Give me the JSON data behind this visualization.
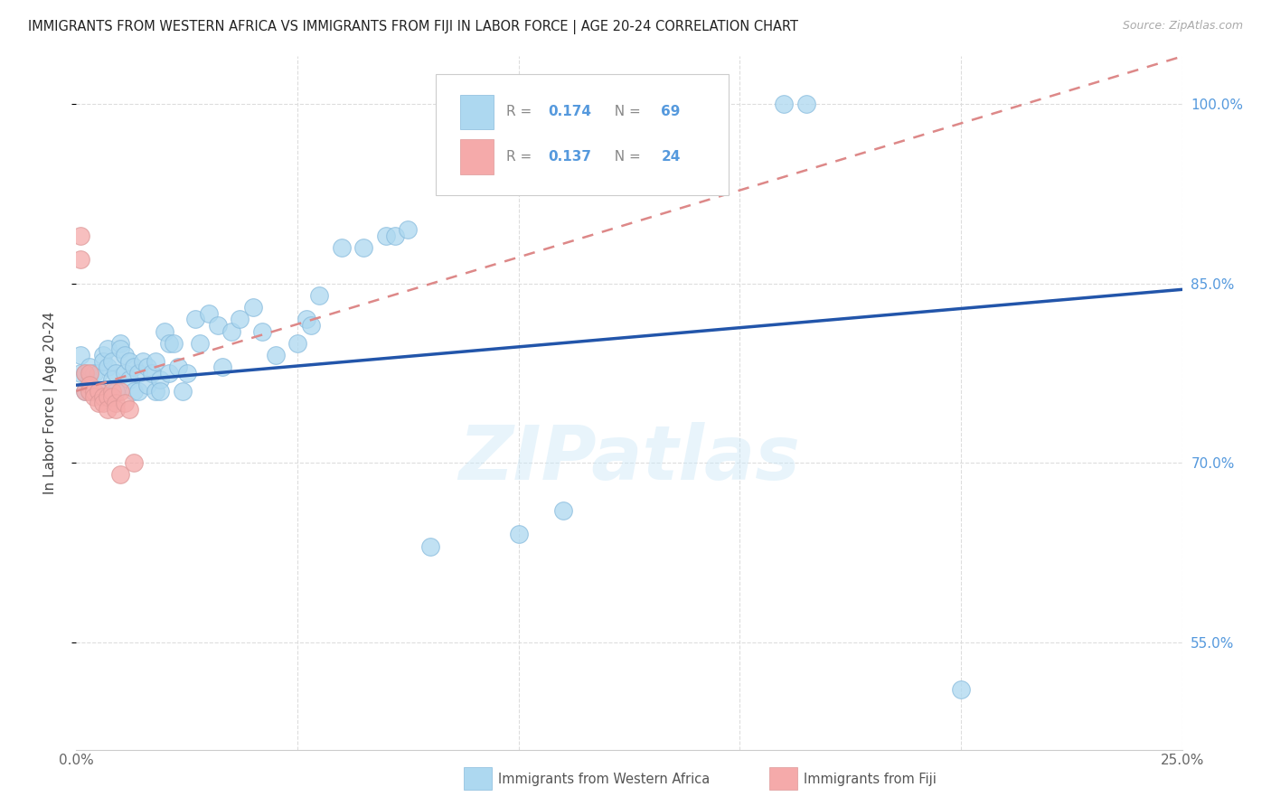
{
  "title": "IMMIGRANTS FROM WESTERN AFRICA VS IMMIGRANTS FROM FIJI IN LABOR FORCE | AGE 20-24 CORRELATION CHART",
  "source": "Source: ZipAtlas.com",
  "ylabel": "In Labor Force | Age 20-24",
  "xlim": [
    0.0,
    0.25
  ],
  "ylim": [
    0.46,
    1.04
  ],
  "xticks": [
    0.0,
    0.05,
    0.1,
    0.15,
    0.2,
    0.25
  ],
  "xticklabels": [
    "0.0%",
    "",
    "",
    "",
    "",
    "25.0%"
  ],
  "ytick_positions": [
    0.55,
    0.7,
    0.85,
    1.0
  ],
  "ytick_labels": [
    "55.0%",
    "70.0%",
    "85.0%",
    "100.0%"
  ],
  "watermark": "ZIPatlas",
  "blue_color": "#add8f0",
  "pink_color": "#f5aaaa",
  "blue_line_color": "#2255aa",
  "pink_line_color": "#dd8888",
  "grid_color": "#dddddd",
  "grid_linestyle": "--",
  "background_color": "#ffffff",
  "blue_line_x0": 0.0,
  "blue_line_y0": 0.765,
  "blue_line_x1": 0.25,
  "blue_line_y1": 0.845,
  "pink_line_x0": 0.0,
  "pink_line_y0": 0.76,
  "pink_line_x1": 0.25,
  "pink_line_y1": 1.04,
  "legend_r_blue": "0.174",
  "legend_n_blue": "69",
  "legend_r_pink": "0.137",
  "legend_n_pink": "24",
  "legend_text_color": "#888888",
  "legend_value_color": "#5599dd",
  "blue_x": [
    0.001,
    0.001,
    0.002,
    0.002,
    0.003,
    0.003,
    0.003,
    0.004,
    0.004,
    0.005,
    0.005,
    0.006,
    0.006,
    0.007,
    0.007,
    0.008,
    0.008,
    0.009,
    0.009,
    0.01,
    0.01,
    0.011,
    0.011,
    0.012,
    0.012,
    0.013,
    0.013,
    0.014,
    0.014,
    0.015,
    0.016,
    0.016,
    0.017,
    0.018,
    0.018,
    0.019,
    0.019,
    0.02,
    0.021,
    0.021,
    0.022,
    0.023,
    0.024,
    0.025,
    0.027,
    0.028,
    0.03,
    0.032,
    0.033,
    0.035,
    0.037,
    0.04,
    0.042,
    0.045,
    0.05,
    0.052,
    0.053,
    0.055,
    0.06,
    0.065,
    0.07,
    0.072,
    0.075,
    0.08,
    0.1,
    0.11,
    0.16,
    0.165,
    0.2
  ],
  "blue_y": [
    0.775,
    0.79,
    0.775,
    0.76,
    0.77,
    0.76,
    0.78,
    0.775,
    0.76,
    0.775,
    0.76,
    0.79,
    0.785,
    0.795,
    0.78,
    0.785,
    0.77,
    0.775,
    0.76,
    0.8,
    0.795,
    0.79,
    0.775,
    0.785,
    0.77,
    0.78,
    0.76,
    0.775,
    0.76,
    0.785,
    0.78,
    0.765,
    0.775,
    0.785,
    0.76,
    0.77,
    0.76,
    0.81,
    0.8,
    0.775,
    0.8,
    0.78,
    0.76,
    0.775,
    0.82,
    0.8,
    0.825,
    0.815,
    0.78,
    0.81,
    0.82,
    0.83,
    0.81,
    0.79,
    0.8,
    0.82,
    0.815,
    0.84,
    0.88,
    0.88,
    0.89,
    0.89,
    0.895,
    0.63,
    0.64,
    0.66,
    1.0,
    1.0,
    0.51
  ],
  "pink_x": [
    0.001,
    0.001,
    0.002,
    0.002,
    0.003,
    0.003,
    0.003,
    0.004,
    0.004,
    0.005,
    0.005,
    0.006,
    0.006,
    0.007,
    0.007,
    0.008,
    0.008,
    0.009,
    0.009,
    0.01,
    0.01,
    0.011,
    0.012,
    0.013
  ],
  "pink_y": [
    0.89,
    0.87,
    0.775,
    0.76,
    0.775,
    0.765,
    0.76,
    0.76,
    0.755,
    0.76,
    0.75,
    0.755,
    0.75,
    0.755,
    0.745,
    0.76,
    0.755,
    0.75,
    0.745,
    0.76,
    0.69,
    0.75,
    0.745,
    0.7
  ]
}
